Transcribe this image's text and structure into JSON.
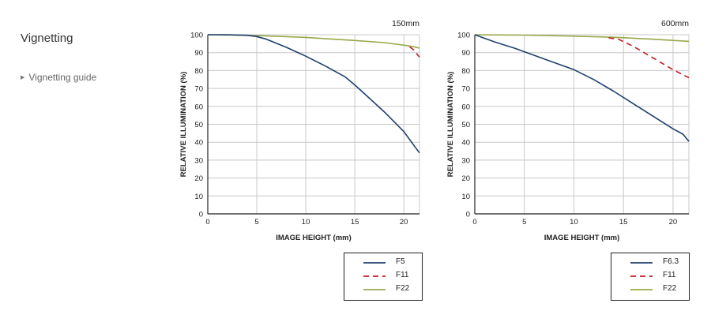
{
  "section": {
    "title": "Vignetting",
    "guide_link": "Vignetting guide",
    "guide_icon": "triangle-right-icon"
  },
  "chart_data": [
    {
      "type": "line",
      "title": "150mm",
      "xlabel": "IMAGE HEIGHT (mm)",
      "ylabel": "RELATIVE ILLUMINATION (%)",
      "xlim": [
        0,
        21.6
      ],
      "ylim": [
        0,
        100
      ],
      "xticks": [
        0,
        5,
        10,
        15,
        20
      ],
      "yticks": [
        0,
        10,
        20,
        30,
        40,
        50,
        60,
        70,
        80,
        90,
        100
      ],
      "grid": true,
      "legend_position": "below-right",
      "series": [
        {
          "name": "F5",
          "style": "solid",
          "color": "#1f3f6e",
          "x": [
            0,
            2,
            4,
            5,
            6,
            8,
            10,
            12,
            14,
            15,
            16,
            18,
            20,
            21.6
          ],
          "y": [
            100,
            100,
            99.7,
            99,
            97.5,
            93,
            88,
            82.5,
            76.5,
            72,
            67,
            57,
            46,
            34
          ]
        },
        {
          "name": "F11",
          "style": "dashed",
          "color": "#c41e24",
          "x": [
            20.6,
            21,
            21.6
          ],
          "y": [
            93.3,
            91.5,
            87.5
          ]
        },
        {
          "name": "F22",
          "style": "solid",
          "color": "#9aa84a",
          "x": [
            0,
            5,
            10,
            15,
            18,
            20,
            21,
            21.6
          ],
          "y": [
            100,
            99.5,
            98.5,
            96.8,
            95.6,
            94.2,
            93.3,
            92.5
          ]
        }
      ]
    },
    {
      "type": "line",
      "title": "600mm",
      "xlabel": "IMAGE HEIGHT (mm)",
      "ylabel": "RELATIVE ILLUMINATION (%)",
      "xlim": [
        0,
        21.6
      ],
      "ylim": [
        0,
        100
      ],
      "xticks": [
        0,
        5,
        10,
        15,
        20
      ],
      "yticks": [
        0,
        10,
        20,
        30,
        40,
        50,
        60,
        70,
        80,
        90,
        100
      ],
      "grid": true,
      "legend_position": "below-right",
      "series": [
        {
          "name": "F6.3",
          "style": "solid",
          "color": "#1f3f6e",
          "x": [
            0,
            2,
            4,
            6,
            8,
            10,
            12,
            14,
            16,
            18,
            20,
            21,
            21.6
          ],
          "y": [
            100,
            96,
            92.5,
            88.5,
            84.5,
            80.5,
            75,
            68.5,
            61.5,
            54.5,
            47.5,
            44.5,
            40.5
          ]
        },
        {
          "name": "F11",
          "style": "dashed",
          "color": "#c41e24",
          "x": [
            13.5,
            14.5,
            16,
            18,
            20,
            21.6
          ],
          "y": [
            98.3,
            97.5,
            93.5,
            87,
            80.5,
            76
          ]
        },
        {
          "name": "F22",
          "style": "solid",
          "color": "#9aa84a",
          "x": [
            0,
            5,
            10,
            14,
            18,
            21.6
          ],
          "y": [
            100,
            99.8,
            99.2,
            98.6,
            97.5,
            96.3
          ]
        }
      ]
    }
  ]
}
